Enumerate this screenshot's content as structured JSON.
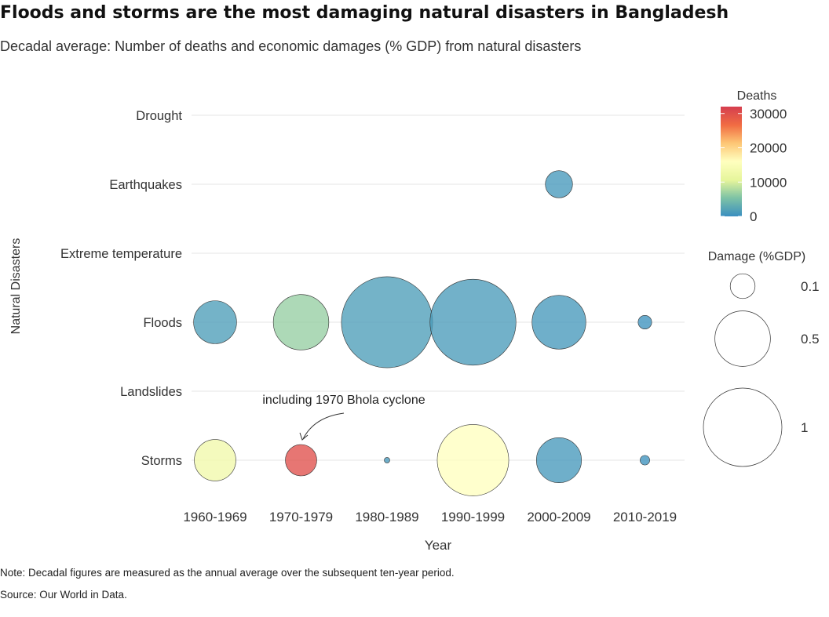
{
  "title": "Floods and storms are the most damaging natural disasters in Bangladesh",
  "subtitle": "Decadal average: Number of deaths and economic damages (% GDP) from natural disasters",
  "note": "Note: Decadal figures are measured as the annual average over the subsequent ten-year period.",
  "source": "Source: Our World in Data.",
  "colors": {
    "scale": [
      "#3a8fc0",
      "#7fc3a5",
      "#e6f59b",
      "#ffffbf",
      "#fdc574",
      "#f16d43",
      "#d53e4f"
    ],
    "gridline": "#e6e6e6",
    "bubble_stroke": "#333333",
    "annotation": "#333333"
  },
  "chart_data": {
    "type": "scatter",
    "xlabel": "Year",
    "ylabel": "Natural Disasters",
    "categories_x": [
      "1960-1969",
      "1970-1979",
      "1980-1989",
      "1990-1999",
      "2000-2009",
      "2010-2019"
    ],
    "categories_y": [
      "Drought",
      "Earthquakes",
      "Extreme temperature",
      "Floods",
      "Landslides",
      "Storms"
    ],
    "size_variable": "Damage (%GDP)",
    "color_variable": "Deaths",
    "points": [
      {
        "x": "2000-2009",
        "y": "Earthquakes",
        "deaths": 1000,
        "damage": 0.12
      },
      {
        "x": "1960-1969",
        "y": "Floods",
        "deaths": 1500,
        "damage": 0.3
      },
      {
        "x": "1970-1979",
        "y": "Floods",
        "deaths": 6500,
        "damage": 0.5
      },
      {
        "x": "1980-1989",
        "y": "Floods",
        "deaths": 1500,
        "damage": 1.35
      },
      {
        "x": "1990-1999",
        "y": "Floods",
        "deaths": 1200,
        "damage": 1.2
      },
      {
        "x": "2000-2009",
        "y": "Floods",
        "deaths": 1000,
        "damage": 0.47
      },
      {
        "x": "2010-2019",
        "y": "Floods",
        "deaths": 300,
        "damage": 0.03
      },
      {
        "x": "1960-1969",
        "y": "Storms",
        "deaths": 13000,
        "damage": 0.28
      },
      {
        "x": "1970-1979",
        "y": "Storms",
        "deaths": 30000,
        "damage": 0.16
      },
      {
        "x": "1980-1989",
        "y": "Storms",
        "deaths": 1000,
        "damage": 0.005
      },
      {
        "x": "1990-1999",
        "y": "Storms",
        "deaths": 16000,
        "damage": 0.83
      },
      {
        "x": "2000-2009",
        "y": "Storms",
        "deaths": 1000,
        "damage": 0.33
      },
      {
        "x": "2010-2019",
        "y": "Storms",
        "deaths": 300,
        "damage": 0.015
      }
    ],
    "color_legend": {
      "title": "Deaths",
      "range": [
        0,
        32000
      ],
      "ticks": [
        "30000",
        "20000",
        "10000",
        "0"
      ],
      "tick_values": [
        30000,
        20000,
        10000,
        0
      ]
    },
    "size_legend": {
      "title": "Damage (%GDP)",
      "labels": [
        "0.1",
        "0.5",
        "1"
      ],
      "values": [
        0.1,
        0.5,
        1
      ]
    },
    "annotation": "including 1970 Bhola cyclone",
    "grid": true,
    "legend_position": "right"
  }
}
